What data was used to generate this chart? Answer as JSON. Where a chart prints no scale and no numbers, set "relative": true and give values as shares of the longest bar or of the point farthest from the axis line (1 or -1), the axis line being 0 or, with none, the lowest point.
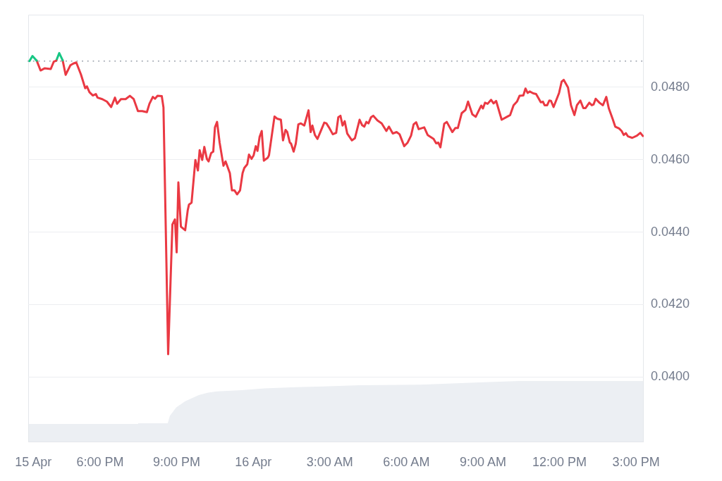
{
  "chart_data": [
    {
      "type": "line",
      "series": [
        {
          "color": "#16c784",
          "x": [
            "--04-15T15:14",
            "--04-15T15:21",
            "--04-15T15:31"
          ],
          "values": [
            0.04872,
            0.04886,
            0.04873
          ]
        },
        {
          "color": "#ea3943",
          "x": [
            "--04-15T15:31",
            "--04-15T15:40",
            "--04-15T15:50",
            "--04-15T16:04",
            "--04-15T16:11",
            "--04-15T16:17"
          ],
          "values": [
            0.04873,
            0.04846,
            0.04852,
            0.0485,
            0.0487,
            0.04873
          ]
        },
        {
          "color": "#16c784",
          "x": [
            "--04-15T16:17",
            "--04-15T16:24",
            "--04-15T16:32"
          ],
          "values": [
            0.04873,
            0.04894,
            0.04874
          ]
        },
        {
          "color": "#ea3943",
          "x": [
            "--04-15T16:32",
            "--04-15T16:39",
            "--04-15T16:50",
            "--04-15T16:57",
            "--04-15T17:04",
            "--04-15T17:15",
            "--04-15T17:25",
            "--04-15T17:29",
            "--04-15T17:35",
            "--04-15T17:43",
            "--04-15T17:50",
            "--04-15T17:54",
            "--04-15T18:05",
            "--04-15T18:16",
            "--04-15T18:26",
            "--04-15T18:35",
            "--04-15T18:40",
            "--04-15T18:49",
            "--04-15T19:00",
            "--04-15T19:10",
            "--04-15T19:19",
            "--04-15T19:29",
            "--04-15T19:39",
            "--04-15T19:50",
            "--04-15T19:56",
            "--04-15T20:04",
            "--04-15T20:09",
            "--04-15T20:15",
            "--04-15T20:25",
            "--04-15T20:29",
            "--04-15T20:40",
            "--04-15T20:50",
            "--04-15T20:56",
            "--04-15T21:00",
            "--04-15T21:04",
            "--04-15T21:10",
            "--04-15T21:20",
            "--04-15T21:26",
            "--04-15T21:29",
            "--04-15T21:35",
            "--04-15T21:44",
            "--04-15T21:50",
            "--04-15T21:54",
            "--04-15T22:00",
            "--04-15T22:05",
            "--04-15T22:11",
            "--04-15T22:15",
            "--04-15T22:21",
            "--04-15T22:26",
            "--04-15T22:30",
            "--04-15T22:35",
            "--04-15T22:41",
            "--04-15T22:50",
            "--04-15T22:55",
            "--04-15T23:05",
            "--04-15T23:10",
            "--04-15T23:16",
            "--04-15T23:22",
            "--04-15T23:29",
            "--04-15T23:35",
            "--04-15T23:39",
            "--04-15T23:46",
            "--04-15T23:50",
            "--04-15T23:56",
            "--04-16T00:01",
            "--04-16T00:06",
            "--04-16T00:10",
            "--04-16T00:15",
            "--04-16T00:20",
            "--04-16T00:25",
            "--04-16T00:34",
            "--04-16T00:37",
            "--04-16T00:50",
            "--04-16T00:56",
            "--04-16T01:05",
            "--04-16T01:10",
            "--04-16T01:16",
            "--04-16T01:20",
            "--04-16T01:26",
            "--04-16T01:29",
            "--04-16T01:35",
            "--04-16T01:40",
            "--04-16T01:46",
            "--04-16T01:52",
            "--04-16T02:00",
            "--04-16T02:10",
            "--04-16T02:15",
            "--04-16T02:19",
            "--04-16T02:25",
            "--04-16T02:31",
            "--04-16T02:37",
            "--04-16T02:47",
            "--04-16T02:52",
            "--04-16T02:58",
            "--04-16T03:07",
            "--04-16T03:15",
            "--04-16T03:20",
            "--04-16T03:25",
            "--04-16T03:30",
            "--04-16T03:35",
            "--04-16T03:41",
            "--04-16T03:52",
            "--04-16T03:59",
            "--04-16T04:10",
            "--04-16T04:16",
            "--04-16T04:21",
            "--04-16T04:26",
            "--04-16T04:31",
            "--04-16T04:37",
            "--04-16T04:42",
            "--04-16T04:52",
            "--04-16T05:02",
            "--04-16T05:13",
            "--04-16T05:19",
            "--04-16T05:28",
            "--04-16T05:37",
            "--04-16T05:44",
            "--04-16T05:55",
            "--04-16T06:03",
            "--04-16T06:11",
            "--04-16T06:17",
            "--04-16T06:23",
            "--04-16T06:29",
            "--04-16T06:42",
            "--04-16T06:50",
            "--04-16T07:04",
            "--04-16T07:10",
            "--04-16T07:15",
            "--04-16T07:20",
            "--04-16T07:29",
            "--04-16T07:35",
            "--04-16T07:48",
            "--04-16T07:55",
            "--04-16T08:01",
            "--04-16T08:10",
            "--04-16T08:19",
            "--04-16T08:25",
            "--04-16T08:35",
            "--04-16T08:43",
            "--04-16T08:56",
            "--04-16T09:00",
            "--04-16T09:05",
            "--04-16T09:11",
            "--04-16T09:19",
            "--04-16T09:25",
            "--04-16T09:31",
            "--04-16T09:44",
            "--04-16T09:55",
            "--04-16T10:04",
            "--04-16T10:12",
            "--04-16T10:20",
            "--04-16T10:26",
            "--04-16T10:35",
            "--04-16T10:40",
            "--04-16T10:45",
            "--04-16T10:50",
            "--04-16T10:58",
            "--04-16T11:05",
            "--04-16T11:16",
            "--04-16T11:21",
            "--04-16T11:25",
            "--04-16T11:31",
            "--04-16T11:36",
            "--04-16T11:40",
            "--04-16T11:46",
            "--04-16T11:59",
            "--04-16T12:05",
            "--04-16T12:10",
            "--04-16T12:20",
            "--04-16T12:27",
            "--04-16T12:35",
            "--04-16T12:41",
            "--04-16T12:49",
            "--04-16T12:56",
            "--04-16T13:01",
            "--04-16T13:10",
            "--04-16T13:16",
            "--04-16T13:20",
            "--04-16T13:25",
            "--04-16T13:34",
            "--04-16T13:42",
            "--04-16T13:50",
            "--04-16T13:56",
            "--04-16T14:05",
            "--04-16T14:11",
            "--04-16T14:20",
            "--04-16T14:26",
            "--04-16T14:31",
            "--04-16T14:36",
            "--04-16T14:41",
            "--04-16T14:51",
            "--04-16T15:02",
            "--04-16T15:10",
            "--04-16T15:16"
          ],
          "values": [
            0.04874,
            0.04834,
            0.0486,
            0.04865,
            0.04868,
            0.04835,
            0.04797,
            0.04802,
            0.04786,
            0.04777,
            0.04781,
            0.04771,
            0.04767,
            0.0476,
            0.04745,
            0.04771,
            0.04754,
            0.04767,
            0.04767,
            0.04776,
            0.04767,
            0.04734,
            0.04734,
            0.04731,
            0.04754,
            0.04773,
            0.04768,
            0.04776,
            0.04775,
            0.04744,
            0.04063,
            0.04421,
            0.04435,
            0.04344,
            0.04537,
            0.04415,
            0.04405,
            0.0446,
            0.04476,
            0.04481,
            0.04599,
            0.0457,
            0.04626,
            0.04599,
            0.04635,
            0.04602,
            0.04595,
            0.04618,
            0.04622,
            0.04689,
            0.04704,
            0.04647,
            0.04583,
            0.04595,
            0.04563,
            0.04515,
            0.04515,
            0.04504,
            0.04515,
            0.04563,
            0.04577,
            0.04587,
            0.04614,
            0.04602,
            0.04612,
            0.04637,
            0.04624,
            0.04663,
            0.04679,
            0.04597,
            0.04605,
            0.04612,
            0.04719,
            0.04713,
            0.0471,
            0.04653,
            0.04682,
            0.04676,
            0.04647,
            0.04644,
            0.04622,
            0.04644,
            0.04697,
            0.047,
            0.04694,
            0.04736,
            0.04676,
            0.04694,
            0.04668,
            0.04657,
            0.04674,
            0.04702,
            0.047,
            0.04689,
            0.0467,
            0.04674,
            0.04717,
            0.04721,
            0.04694,
            0.04706,
            0.04672,
            0.04653,
            0.04659,
            0.0471,
            0.04695,
            0.04691,
            0.04704,
            0.047,
            0.04717,
            0.04721,
            0.04708,
            0.047,
            0.04679,
            0.04691,
            0.04672,
            0.04676,
            0.0467,
            0.04637,
            0.04647,
            0.04666,
            0.04697,
            0.04703,
            0.04684,
            0.04689,
            0.04668,
            0.04657,
            0.04645,
            0.04647,
            0.04634,
            0.04699,
            0.04704,
            0.04676,
            0.04687,
            0.04687,
            0.04728,
            0.04737,
            0.0476,
            0.04725,
            0.04718,
            0.04749,
            0.04741,
            0.04757,
            0.04754,
            0.04765,
            0.04755,
            0.04762,
            0.0471,
            0.04717,
            0.04723,
            0.0475,
            0.0476,
            0.04776,
            0.04777,
            0.04796,
            0.04784,
            0.04788,
            0.04783,
            0.04781,
            0.04758,
            0.0476,
            0.0475,
            0.0475,
            0.04763,
            0.04762,
            0.04745,
            0.04784,
            0.04815,
            0.0482,
            0.04799,
            0.0475,
            0.04723,
            0.0475,
            0.04763,
            0.04742,
            0.04742,
            0.04757,
            0.0475,
            0.04752,
            0.04768,
            0.04757,
            0.0475,
            0.04773,
            0.04741,
            0.04712,
            0.04691,
            0.04686,
            0.04679,
            0.04668,
            0.04673,
            0.04664,
            0.0466,
            0.04666,
            0.04674,
            0.04665
          ]
        }
      ],
      "xlim": [
        "--04-15T15:11",
        "--04-16T15:18"
      ],
      "xticks": [
        {
          "value": "--04-15T15:23",
          "label": "15 Apr"
        },
        {
          "value": "--04-15T18:00",
          "label": "6:00 PM"
        },
        {
          "value": "--04-15T21:00",
          "label": "9:00 PM"
        },
        {
          "value": "--04-16T00:00",
          "label": "16 Apr"
        },
        {
          "value": "--04-16T03:00",
          "label": "3:00 AM"
        },
        {
          "value": "--04-16T06:00",
          "label": "6:00 AM"
        },
        {
          "value": "--04-16T09:00",
          "label": "9:00 AM"
        },
        {
          "value": "--04-16T12:00",
          "label": "12:00 PM"
        },
        {
          "value": "--04-16T15:00",
          "label": "3:00 PM"
        }
      ],
      "ylim": [
        0.0382,
        0.05
      ],
      "yticks": [
        {
          "value": 0.04,
          "label": "0.0400"
        },
        {
          "value": 0.042,
          "label": "0.0420"
        },
        {
          "value": 0.044,
          "label": "0.0440"
        },
        {
          "value": 0.046,
          "label": "0.0460"
        },
        {
          "value": 0.048,
          "label": "0.0480"
        }
      ],
      "grid": "y",
      "ref_lines": [
        {
          "axis": "y",
          "value": 0.04872,
          "color": "#a3a9b3",
          "line_style": "dotted"
        }
      ]
    },
    {
      "type": "area",
      "relative": true,
      "color": "#eceff3",
      "tick_labels": false,
      "xlim": [
        "--04-15T15:11",
        "--04-16T15:18"
      ],
      "x": [
        "--04-15T15:11",
        "--04-15T19:29",
        "--04-15T19:30",
        "--04-15T20:39",
        "--04-15T20:44",
        "--04-15T20:59",
        "--04-15T21:20",
        "--04-15T21:52",
        "--04-15T22:14",
        "--04-15T22:35",
        "--04-15T23:33",
        "--04-16T00:26",
        "--04-16T01:41",
        "--04-16T02:44",
        "--04-16T04:10",
        "--04-16T06:32",
        "--04-16T09:02",
        "--04-16T10:26",
        "--04-16T15:18"
      ],
      "values": [
        0.3,
        0.3,
        0.31,
        0.31,
        0.43,
        0.57,
        0.67,
        0.77,
        0.81,
        0.83,
        0.85,
        0.88,
        0.9,
        0.91,
        0.93,
        0.94,
        0.98,
        1,
        1
      ]
    }
  ]
}
